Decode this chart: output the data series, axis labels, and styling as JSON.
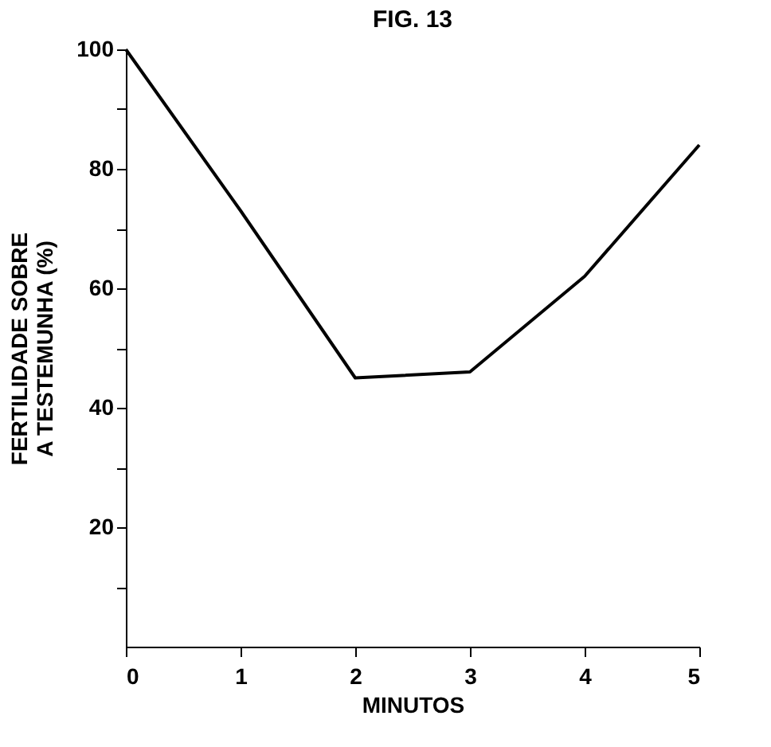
{
  "chart_data": {
    "type": "line",
    "title": "FIG. 13",
    "xlabel": "MINUTOS",
    "ylabel": "FERTILIDADE SOBRE\nA TESTEMUNHA (%)",
    "x": [
      0,
      1,
      2,
      3,
      4,
      5
    ],
    "series": [
      {
        "color": "#000000",
        "values": [
          100,
          73,
          45,
          46,
          62,
          84
        ]
      }
    ],
    "xlim": [
      0,
      5
    ],
    "xticks": [
      0,
      1,
      2,
      3,
      4,
      5
    ],
    "ylim": [
      0,
      100
    ],
    "yticks": [
      {
        "value": 10,
        "label": null
      },
      20,
      {
        "value": 30,
        "label": null
      },
      40,
      {
        "value": 50,
        "label": null
      },
      60,
      {
        "value": 70,
        "label": null
      },
      80,
      {
        "value": 90,
        "label": null
      },
      100
    ],
    "grid": false,
    "marker": "none",
    "line_style": "solid"
  }
}
